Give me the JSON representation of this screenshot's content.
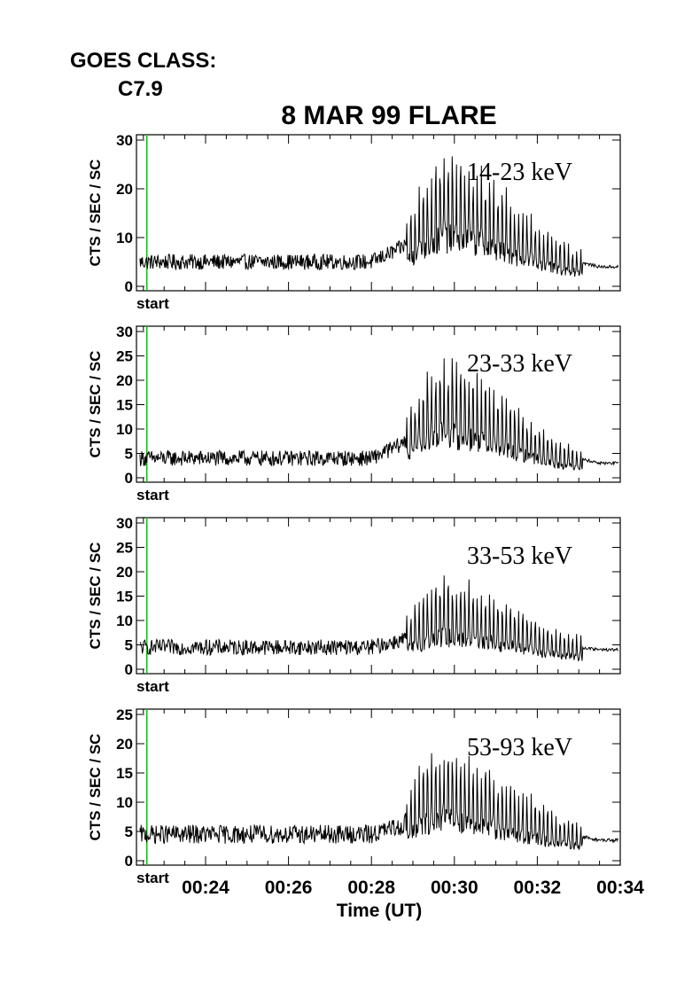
{
  "header": {
    "goes_label": "GOES CLASS:",
    "goes_class": "C7.9",
    "title": "8 MAR 99 FLARE"
  },
  "colors": {
    "start_marker": "#00cc00",
    "trace": "#000000"
  },
  "chart_data": [
    {
      "type": "line",
      "series": [
        {
          "name": "14-23 keV",
          "values": [
            5,
            5,
            5,
            5,
            5,
            8,
            14,
            18,
            16,
            11,
            6,
            4
          ]
        }
      ],
      "x": [
        "00:22:30",
        "00:24",
        "00:26",
        "00:27",
        "00:28",
        "00:28:45",
        "00:29:15",
        "00:29:45",
        "00:30:30",
        "00:31:30",
        "00:32:30",
        "00:33:30"
      ],
      "ylabel": "CTS / SEC / SC",
      "yticks": [
        "0",
        "10",
        "20",
        "30"
      ],
      "ylim": [
        0,
        30
      ],
      "xlim": [
        "00:22:20",
        "00:34"
      ],
      "start_marker_label": "start",
      "start_time": "00:22:35"
    },
    {
      "type": "line",
      "series": [
        {
          "name": "23-33 keV",
          "values": [
            4,
            4,
            4,
            4,
            4,
            7,
            13,
            16,
            14,
            9,
            5,
            3
          ]
        }
      ],
      "x": [
        "00:22:30",
        "00:24",
        "00:26",
        "00:27",
        "00:28",
        "00:28:45",
        "00:29:15",
        "00:29:45",
        "00:30:30",
        "00:31:30",
        "00:32:30",
        "00:33:30"
      ],
      "ylabel": "CTS / SEC / SC",
      "yticks": [
        "0",
        "5",
        "10",
        "15",
        "20",
        "25",
        "30"
      ],
      "ylim": [
        0,
        30
      ],
      "xlim": [
        "00:22:20",
        "00:34"
      ],
      "start_marker_label": "start",
      "start_time": "00:22:35"
    },
    {
      "type": "line",
      "series": [
        {
          "name": "33-53 keV",
          "values": [
            4.5,
            4.5,
            4.5,
            4.5,
            4.5,
            6,
            10,
            12,
            11,
            8,
            5,
            4
          ]
        }
      ],
      "x": [
        "00:22:30",
        "00:24",
        "00:26",
        "00:27",
        "00:28",
        "00:28:45",
        "00:29:15",
        "00:29:45",
        "00:30:30",
        "00:31:30",
        "00:32:30",
        "00:33:30"
      ],
      "ylabel": "CTS / SEC / SC",
      "yticks": [
        "0",
        "5",
        "10",
        "15",
        "20",
        "25",
        "30"
      ],
      "ylim": [
        0,
        30
      ],
      "xlim": [
        "00:22:20",
        "00:34"
      ],
      "start_marker_label": "start",
      "start_time": "00:22:35"
    },
    {
      "type": "line",
      "series": [
        {
          "name": "53-93 keV",
          "values": [
            4.5,
            4.5,
            4.5,
            4.5,
            4.5,
            6,
            11,
            13,
            11,
            8,
            5,
            3.5
          ]
        }
      ],
      "x": [
        "00:22:30",
        "00:24",
        "00:26",
        "00:27",
        "00:28",
        "00:28:45",
        "00:29:15",
        "00:29:45",
        "00:30:30",
        "00:31:30",
        "00:32:30",
        "00:33:30"
      ],
      "ylabel": "CTS / SEC / SC",
      "xlabel": "Time (UT)",
      "xticks": [
        "00:24",
        "00:26",
        "00:28",
        "00:30",
        "00:32",
        "00:34"
      ],
      "yticks": [
        "0",
        "5",
        "10",
        "15",
        "20",
        "25"
      ],
      "ylim": [
        0,
        25
      ],
      "xlim": [
        "00:22:20",
        "00:34"
      ],
      "start_marker_label": "start",
      "start_time": "00:22:35"
    }
  ]
}
